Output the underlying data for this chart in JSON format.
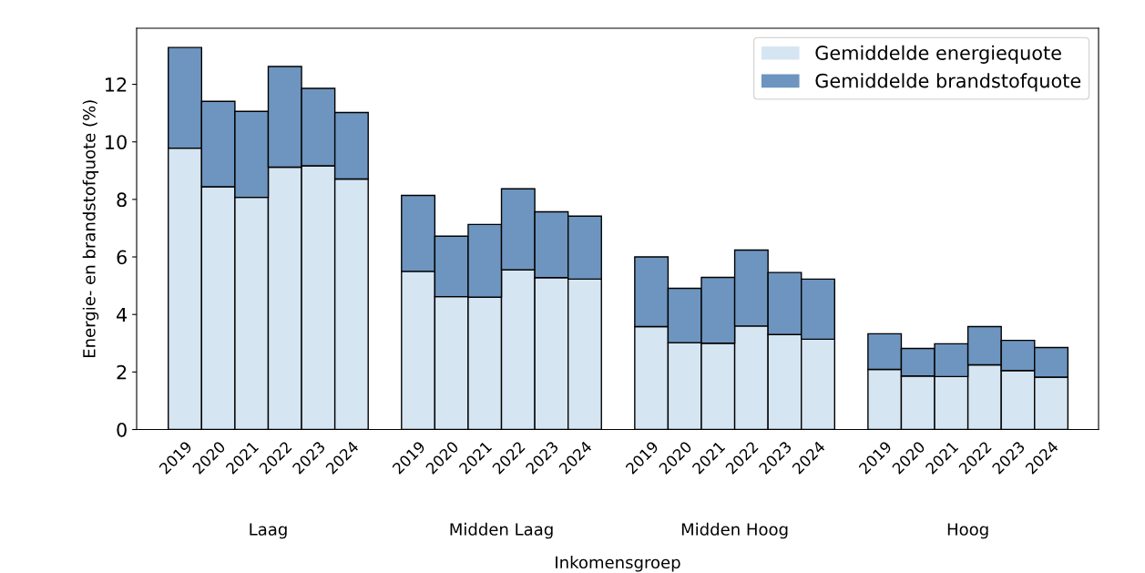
{
  "chart_data": {
    "type": "bar",
    "stacked": true,
    "xlabel": "Inkomensgroep",
    "ylabel": "Energie- en brandstofquote (%)",
    "categories": [
      "2019",
      "2020",
      "2021",
      "2022",
      "2023",
      "2024",
      null,
      "2019",
      "2020",
      "2021",
      "2022",
      "2023",
      "2024",
      null,
      "2019",
      "2020",
      "2021",
      "2022",
      "2023",
      "2024",
      null,
      "2019",
      "2020",
      "2021",
      "2022",
      "2023",
      "2024"
    ],
    "series": [
      {
        "name": "Gemiddelde energiequote",
        "color": "#d6e5f2",
        "values": [
          9.78,
          8.44,
          8.07,
          9.12,
          9.17,
          8.71,
          null,
          5.5,
          4.62,
          4.6,
          5.55,
          5.28,
          5.23,
          null,
          3.58,
          3.02,
          3.0,
          3.6,
          3.3,
          3.14,
          null,
          2.09,
          1.86,
          1.84,
          2.25,
          2.05,
          1.82
        ]
      },
      {
        "name": "Gemiddelde brandstofquote",
        "color": "#6d95bf",
        "values": [
          3.5,
          2.97,
          2.99,
          3.5,
          2.69,
          2.31,
          null,
          2.64,
          2.1,
          2.53,
          2.82,
          2.29,
          2.19,
          null,
          2.42,
          1.89,
          2.29,
          2.64,
          2.16,
          2.09,
          null,
          1.24,
          0.96,
          1.14,
          1.33,
          1.05,
          1.03
        ]
      }
    ],
    "annotations": [
      "Laag",
      "Midden Laag",
      "Midden Hoog",
      "Hoog"
    ],
    "ylim": [
      0,
      13.95
    ],
    "yticks": [
      0,
      2,
      4,
      6,
      8,
      10,
      12
    ],
    "grid": false,
    "legend": "top right"
  }
}
